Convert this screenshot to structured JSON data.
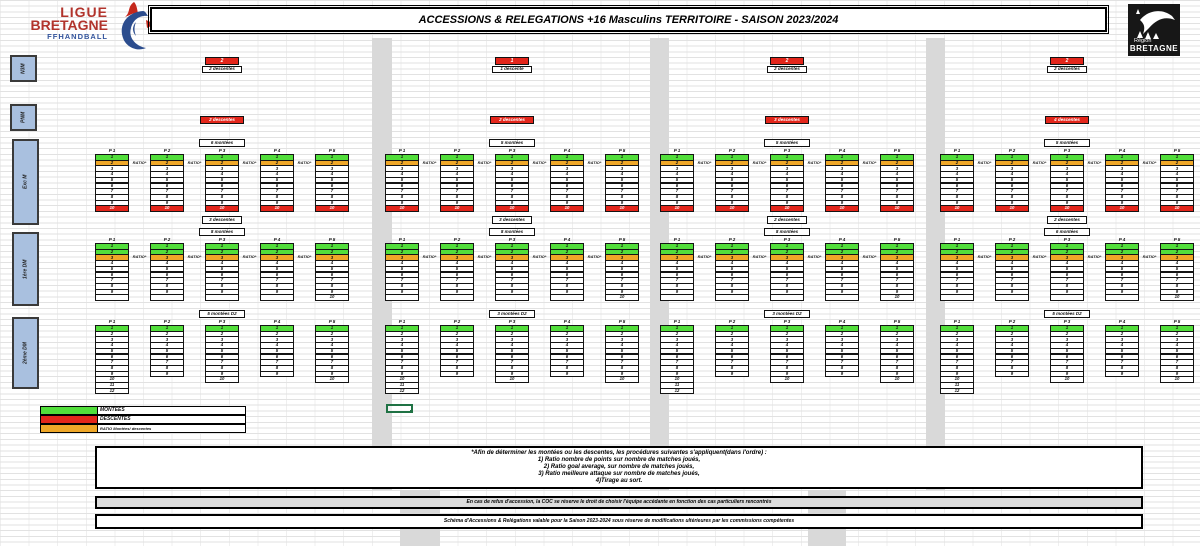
{
  "title": "ACCESSIONS & RELEGATIONS +16 Masculins  TERRITOIRE - SAISON  2023/2024",
  "logo_left": {
    "line1": "LIGUE",
    "line2": "BRETAGNE",
    "line3": "FFHANDBALL"
  },
  "logo_right": {
    "line1": "Région",
    "line2": "BRETAGNE"
  },
  "left_labels": [
    {
      "label": "N3M"
    },
    {
      "label": "PNM"
    },
    {
      "label": "Exc M"
    },
    {
      "label": "1ère DM"
    },
    {
      "label": "2ème DM"
    }
  ],
  "ratio_label": "RATIO*",
  "colors": {
    "green": "#52de3b",
    "orange": "#efa728",
    "red": "#e3261b",
    "blue_label": "#a9c0df",
    "gray": "#d9d9d9"
  },
  "legend": [
    {
      "key": "green",
      "label": "MONTÉES"
    },
    {
      "key": "red",
      "label": "DESCENTES"
    },
    {
      "key": "orange",
      "label": "RATIO  Montées/ descentes"
    }
  ],
  "levels": {
    "exc": {
      "green": [
        1
      ],
      "orange": [
        2
      ],
      "red": [
        10
      ],
      "pools": [
        {
          "name": "P 1",
          "rows": [
            1,
            2,
            3,
            4,
            5,
            6,
            7,
            8,
            9,
            10
          ]
        },
        {
          "name": "P 2",
          "rows": [
            1,
            2,
            3,
            4,
            5,
            6,
            7,
            8,
            9,
            10
          ]
        },
        {
          "name": "P 3",
          "rows": [
            1,
            2,
            3,
            4,
            5,
            6,
            7,
            8,
            9,
            10
          ]
        },
        {
          "name": "P 4",
          "rows": [
            1,
            2,
            3,
            4,
            5,
            6,
            7,
            8,
            9,
            10
          ]
        },
        {
          "name": "P 5",
          "rows": [
            1,
            2,
            3,
            4,
            5,
            6,
            7,
            8,
            9,
            10
          ]
        }
      ]
    },
    "d1": {
      "green": [
        1,
        2
      ],
      "orange": [
        3
      ],
      "red": [],
      "pools": [
        {
          "name": "P 1",
          "rows": [
            1,
            2,
            3,
            4,
            5,
            6,
            7,
            8,
            9,
            ""
          ]
        },
        {
          "name": "P 2",
          "rows": [
            1,
            2,
            3,
            4,
            5,
            6,
            7,
            8,
            9,
            ""
          ]
        },
        {
          "name": "P 3",
          "rows": [
            1,
            2,
            3,
            4,
            5,
            6,
            7,
            8,
            9,
            ""
          ]
        },
        {
          "name": "P 4",
          "rows": [
            1,
            2,
            3,
            4,
            5,
            6,
            7,
            8,
            9,
            ""
          ]
        },
        {
          "name": "P 5",
          "rows": [
            1,
            2,
            3,
            4,
            5,
            6,
            7,
            8,
            9,
            10
          ]
        }
      ]
    },
    "d2": {
      "green": [
        1
      ],
      "orange": [],
      "red": [],
      "pools": [
        {
          "name": "P 1",
          "rows": [
            1,
            2,
            3,
            4,
            5,
            6,
            7,
            8,
            9,
            10,
            11,
            12
          ]
        },
        {
          "name": "P 2",
          "rows": [
            1,
            2,
            3,
            4,
            5,
            6,
            7,
            8,
            9
          ]
        },
        {
          "name": "P 3",
          "rows": [
            1,
            2,
            3,
            4,
            5,
            6,
            7,
            8,
            9,
            10
          ]
        },
        {
          "name": "P 4",
          "rows": [
            1,
            2,
            3,
            4,
            5,
            6,
            7,
            8,
            9
          ]
        },
        {
          "name": "P 5",
          "rows": [
            1,
            2,
            3,
            4,
            5,
            6,
            7,
            8,
            9,
            10
          ]
        }
      ]
    }
  },
  "territories": [
    {
      "n3m_count": "2",
      "n3m_note": "2 descentes",
      "pnm_note": "2 descentes",
      "exc_montees": "6 montées",
      "exc_descentes": "3 descentes",
      "d1_montees": "8 montées",
      "d2_montees": "5 montées D2"
    },
    {
      "n3m_count": "1",
      "n3m_note": "1 descente",
      "pnm_note": "2 descentes",
      "exc_montees": "5 montées",
      "exc_descentes": "3 descentes",
      "d1_montees": "8 montées",
      "d2_montees": "3 montées D2"
    },
    {
      "n3m_count": "2",
      "n3m_note": "2 descentes",
      "pnm_note": "3 descentes",
      "exc_montees": "5 montées",
      "exc_descentes": "2 descentes",
      "d1_montees": "8 montées",
      "d2_montees": "3 montées D2"
    },
    {
      "n3m_count": "2",
      "n3m_note": "2 descentes",
      "pnm_note": "4 descentes",
      "exc_montees": "5 montées",
      "exc_descentes": "2 descentes",
      "d1_montees": "6 montées",
      "d2_montees": "5 montées D2"
    }
  ],
  "notes": {
    "procedure": [
      "*Afin de déterminer les montées ou les descentes, les procédures suivantes s'appliquent(dans l'ordre) :",
      "1) Ratio nombre de points sur nombre de matches joués,",
      "2) Ratio goal average, sur nombre de matches joués,",
      "3) Ratio meilleure attaque sur nombre de matches joués,",
      "4)Tirage au sort."
    ],
    "coc": "En cas de refus d'accession, la COC se réserve le droit de choisir l'équipe accédante en fonction des cas particuliers  rencontrés",
    "validity": "Schéma d'Accessions & Relégations valable pour la Saison 2023-2024 sous réserve de modifications ultérieures par les commissions compétentes"
  }
}
